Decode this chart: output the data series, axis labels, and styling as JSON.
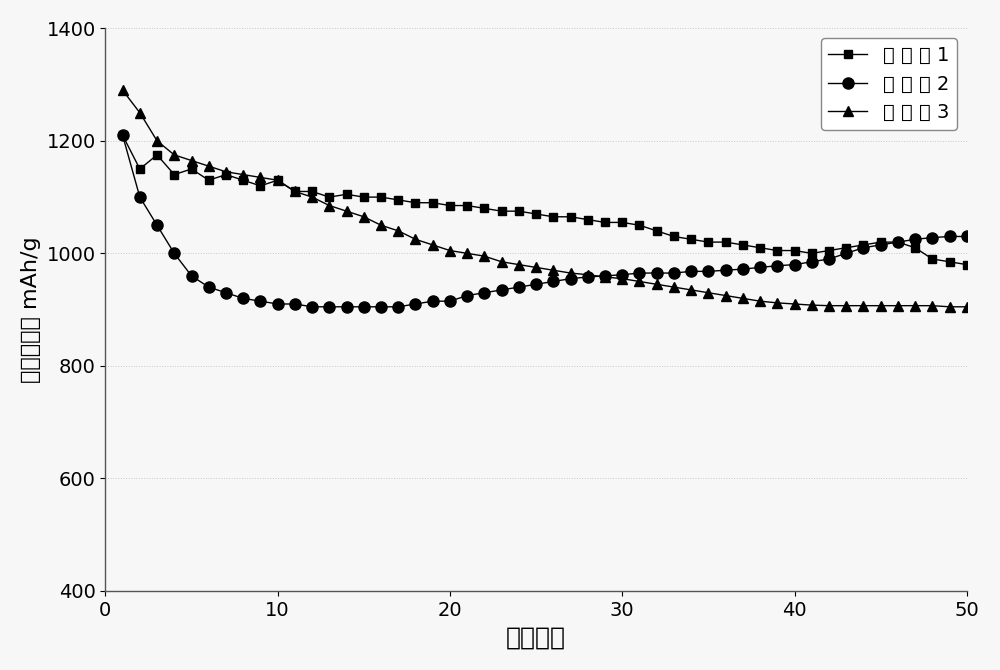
{
  "series1_x": [
    1,
    2,
    3,
    4,
    5,
    6,
    7,
    8,
    9,
    10,
    11,
    12,
    13,
    14,
    15,
    16,
    17,
    18,
    19,
    20,
    21,
    22,
    23,
    24,
    25,
    26,
    27,
    28,
    29,
    30,
    31,
    32,
    33,
    34,
    35,
    36,
    37,
    38,
    39,
    40,
    41,
    42,
    43,
    44,
    45,
    46,
    47,
    48,
    49,
    50
  ],
  "series1_y": [
    1210,
    1150,
    1175,
    1140,
    1150,
    1130,
    1140,
    1130,
    1120,
    1130,
    1110,
    1110,
    1100,
    1105,
    1100,
    1100,
    1095,
    1090,
    1090,
    1085,
    1085,
    1080,
    1075,
    1075,
    1070,
    1065,
    1065,
    1060,
    1055,
    1055,
    1050,
    1040,
    1030,
    1025,
    1020,
    1020,
    1015,
    1010,
    1005,
    1005,
    1000,
    1005,
    1010,
    1015,
    1020,
    1020,
    1010,
    990,
    985,
    980
  ],
  "series2_x": [
    1,
    2,
    3,
    4,
    5,
    6,
    7,
    8,
    9,
    10,
    11,
    12,
    13,
    14,
    15,
    16,
    17,
    18,
    19,
    20,
    21,
    22,
    23,
    24,
    25,
    26,
    27,
    28,
    29,
    30,
    31,
    32,
    33,
    34,
    35,
    36,
    37,
    38,
    39,
    40,
    41,
    42,
    43,
    44,
    45,
    46,
    47,
    48,
    49,
    50
  ],
  "series2_y": [
    1210,
    1100,
    1050,
    1000,
    960,
    940,
    930,
    920,
    915,
    910,
    910,
    905,
    905,
    905,
    905,
    905,
    905,
    910,
    915,
    915,
    925,
    930,
    935,
    940,
    945,
    950,
    955,
    958,
    960,
    962,
    965,
    965,
    965,
    968,
    968,
    970,
    972,
    975,
    978,
    980,
    985,
    990,
    1000,
    1010,
    1015,
    1020,
    1025,
    1028,
    1030,
    1030
  ],
  "series3_x": [
    1,
    2,
    3,
    4,
    5,
    6,
    7,
    8,
    9,
    10,
    11,
    12,
    13,
    14,
    15,
    16,
    17,
    18,
    19,
    20,
    21,
    22,
    23,
    24,
    25,
    26,
    27,
    28,
    29,
    30,
    31,
    32,
    33,
    34,
    35,
    36,
    37,
    38,
    39,
    40,
    41,
    42,
    43,
    44,
    45,
    46,
    47,
    48,
    49,
    50
  ],
  "series3_y": [
    1290,
    1250,
    1200,
    1175,
    1165,
    1155,
    1145,
    1140,
    1135,
    1130,
    1110,
    1100,
    1085,
    1075,
    1065,
    1050,
    1040,
    1025,
    1015,
    1005,
    1000,
    995,
    985,
    980,
    975,
    970,
    965,
    962,
    958,
    955,
    950,
    945,
    940,
    935,
    930,
    925,
    920,
    915,
    912,
    910,
    908,
    907,
    907,
    907,
    907,
    907,
    907,
    907,
    905,
    905
  ],
  "series1_label": "实 施 例 1",
  "series2_label": "实 施 例 2",
  "series3_label": "实 施 例 3",
  "series1_color": "#000000",
  "series2_color": "#000000",
  "series3_color": "#000000",
  "series1_marker": "s",
  "series2_marker": "o",
  "series3_marker": "^",
  "series1_markersize": 6,
  "series2_markersize": 8,
  "series3_markersize": 7,
  "xlabel": "循环次数",
  "ylabel": "放电比容量 mAh/g",
  "xlim": [
    0,
    50
  ],
  "ylim": [
    400,
    1400
  ],
  "yticks": [
    400,
    600,
    800,
    1000,
    1200,
    1400
  ],
  "xticks": [
    0,
    10,
    20,
    30,
    40,
    50
  ],
  "xlabel_fontsize": 18,
  "ylabel_fontsize": 16,
  "tick_fontsize": 14,
  "legend_fontsize": 14,
  "bg_color": "#f7f7f7",
  "plot_bg_color": "#f7f7f7"
}
